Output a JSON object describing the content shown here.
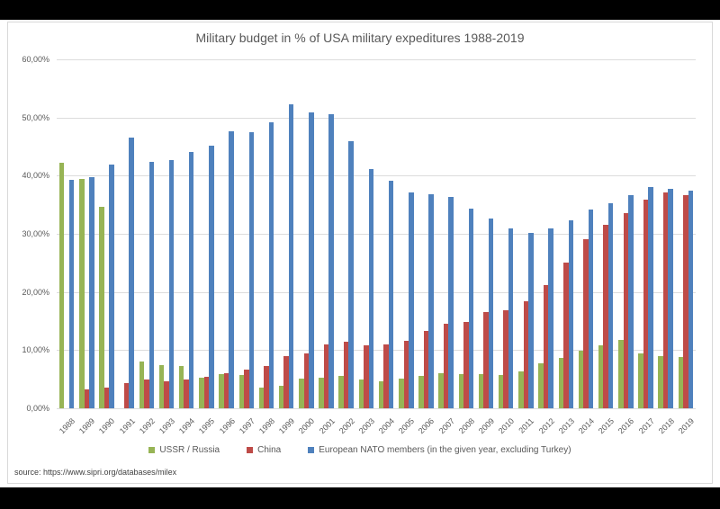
{
  "page": {
    "source_note": "source: https://www.sipri.org/databases/milex"
  },
  "chart_data": {
    "type": "bar",
    "title": "Military budget in % of USA military expeditures 1988-2019",
    "xlabel": "",
    "ylabel": "",
    "ylim": [
      0,
      60
    ],
    "ytick_step": 10,
    "ytick_labels": [
      "0,00%",
      "10,00%",
      "20,00%",
      "30,00%",
      "40,00%",
      "50,00%",
      "60,00%"
    ],
    "grid": true,
    "legend_position": "bottom",
    "categories": [
      "1988",
      "1989",
      "1990",
      "1991",
      "1992",
      "1993",
      "1994",
      "1995",
      "1996",
      "1997",
      "1998",
      "1999",
      "2000",
      "2001",
      "2002",
      "2003",
      "2004",
      "2005",
      "2006",
      "2007",
      "2008",
      "2009",
      "2010",
      "2011",
      "2012",
      "2013",
      "2014",
      "2015",
      "2016",
      "2017",
      "2018",
      "2019"
    ],
    "series": [
      {
        "name": "USSR / Russia",
        "color": "#97B455",
        "values": [
          42.2,
          39.5,
          34.7,
          null,
          8.0,
          7.4,
          7.3,
          5.2,
          5.9,
          5.7,
          3.5,
          3.9,
          5.1,
          5.2,
          5.5,
          5.0,
          4.7,
          5.1,
          5.6,
          6.0,
          5.9,
          5.8,
          5.7,
          6.4,
          7.7,
          8.7,
          9.9,
          10.9,
          11.8,
          9.5,
          8.9,
          8.8
        ]
      },
      {
        "name": "China",
        "color": "#BE4B48",
        "values": [
          null,
          3.2,
          3.5,
          4.3,
          4.9,
          4.7,
          4.9,
          5.4,
          6.1,
          6.6,
          7.2,
          8.9,
          9.4,
          11.0,
          11.5,
          10.8,
          11.0,
          11.6,
          13.3,
          14.5,
          14.8,
          16.5,
          16.8,
          18.4,
          21.2,
          25.1,
          29.0,
          31.6,
          33.5,
          35.8,
          37.1,
          36.7
        ]
      },
      {
        "name": "European NATO members (in the given year, excluding Turkey)",
        "color": "#4F81BD",
        "values": [
          39.3,
          39.7,
          41.9,
          46.5,
          42.3,
          42.7,
          44.0,
          45.1,
          47.7,
          47.5,
          49.1,
          52.3,
          50.9,
          50.6,
          45.9,
          41.2,
          39.1,
          37.1,
          36.8,
          36.3,
          34.4,
          32.7,
          31.0,
          30.1,
          30.9,
          32.3,
          34.1,
          35.3,
          36.7,
          38.1,
          37.8,
          37.4
        ]
      }
    ]
  }
}
